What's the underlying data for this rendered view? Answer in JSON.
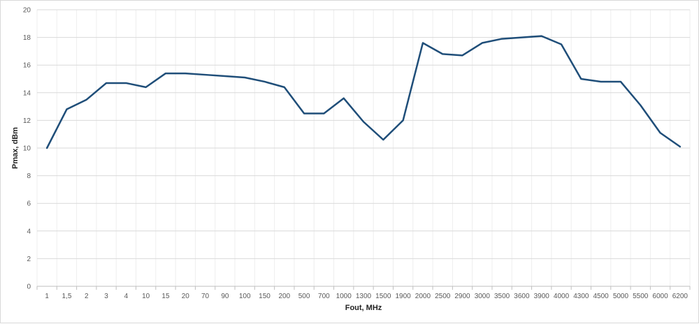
{
  "chart_data": {
    "type": "line",
    "title": "",
    "xlabel": "Fout, MHz",
    "ylabel": "Pmax, dBm",
    "categories": [
      "1",
      "1,5",
      "2",
      "3",
      "4",
      "10",
      "15",
      "20",
      "70",
      "90",
      "100",
      "150",
      "200",
      "500",
      "700",
      "1000",
      "1300",
      "1500",
      "1900",
      "2000",
      "2500",
      "2900",
      "3000",
      "3500",
      "3600",
      "3900",
      "4000",
      "4300",
      "4500",
      "5000",
      "5500",
      "6000",
      "6200"
    ],
    "series": [
      {
        "values": [
          10.0,
          12.8,
          13.5,
          14.7,
          14.7,
          14.4,
          15.4,
          15.4,
          15.3,
          15.2,
          15.1,
          14.8,
          14.4,
          12.5,
          12.5,
          13.6,
          11.9,
          10.6,
          12.0,
          17.6,
          16.8,
          16.7,
          17.6,
          17.9,
          18.0,
          18.1,
          17.5,
          15.0,
          14.8,
          14.8,
          13.1,
          11.1,
          10.1
        ]
      }
    ],
    "ylim": [
      0,
      20
    ],
    "yticks": [
      0,
      2,
      4,
      6,
      8,
      10,
      12,
      14,
      16,
      18,
      20
    ],
    "grid": true,
    "colors": {
      "line": "#1f4e79",
      "grid_major": "#d9d9d9",
      "grid_minor": "#eeeeee",
      "axis": "#bfbfbf"
    }
  }
}
